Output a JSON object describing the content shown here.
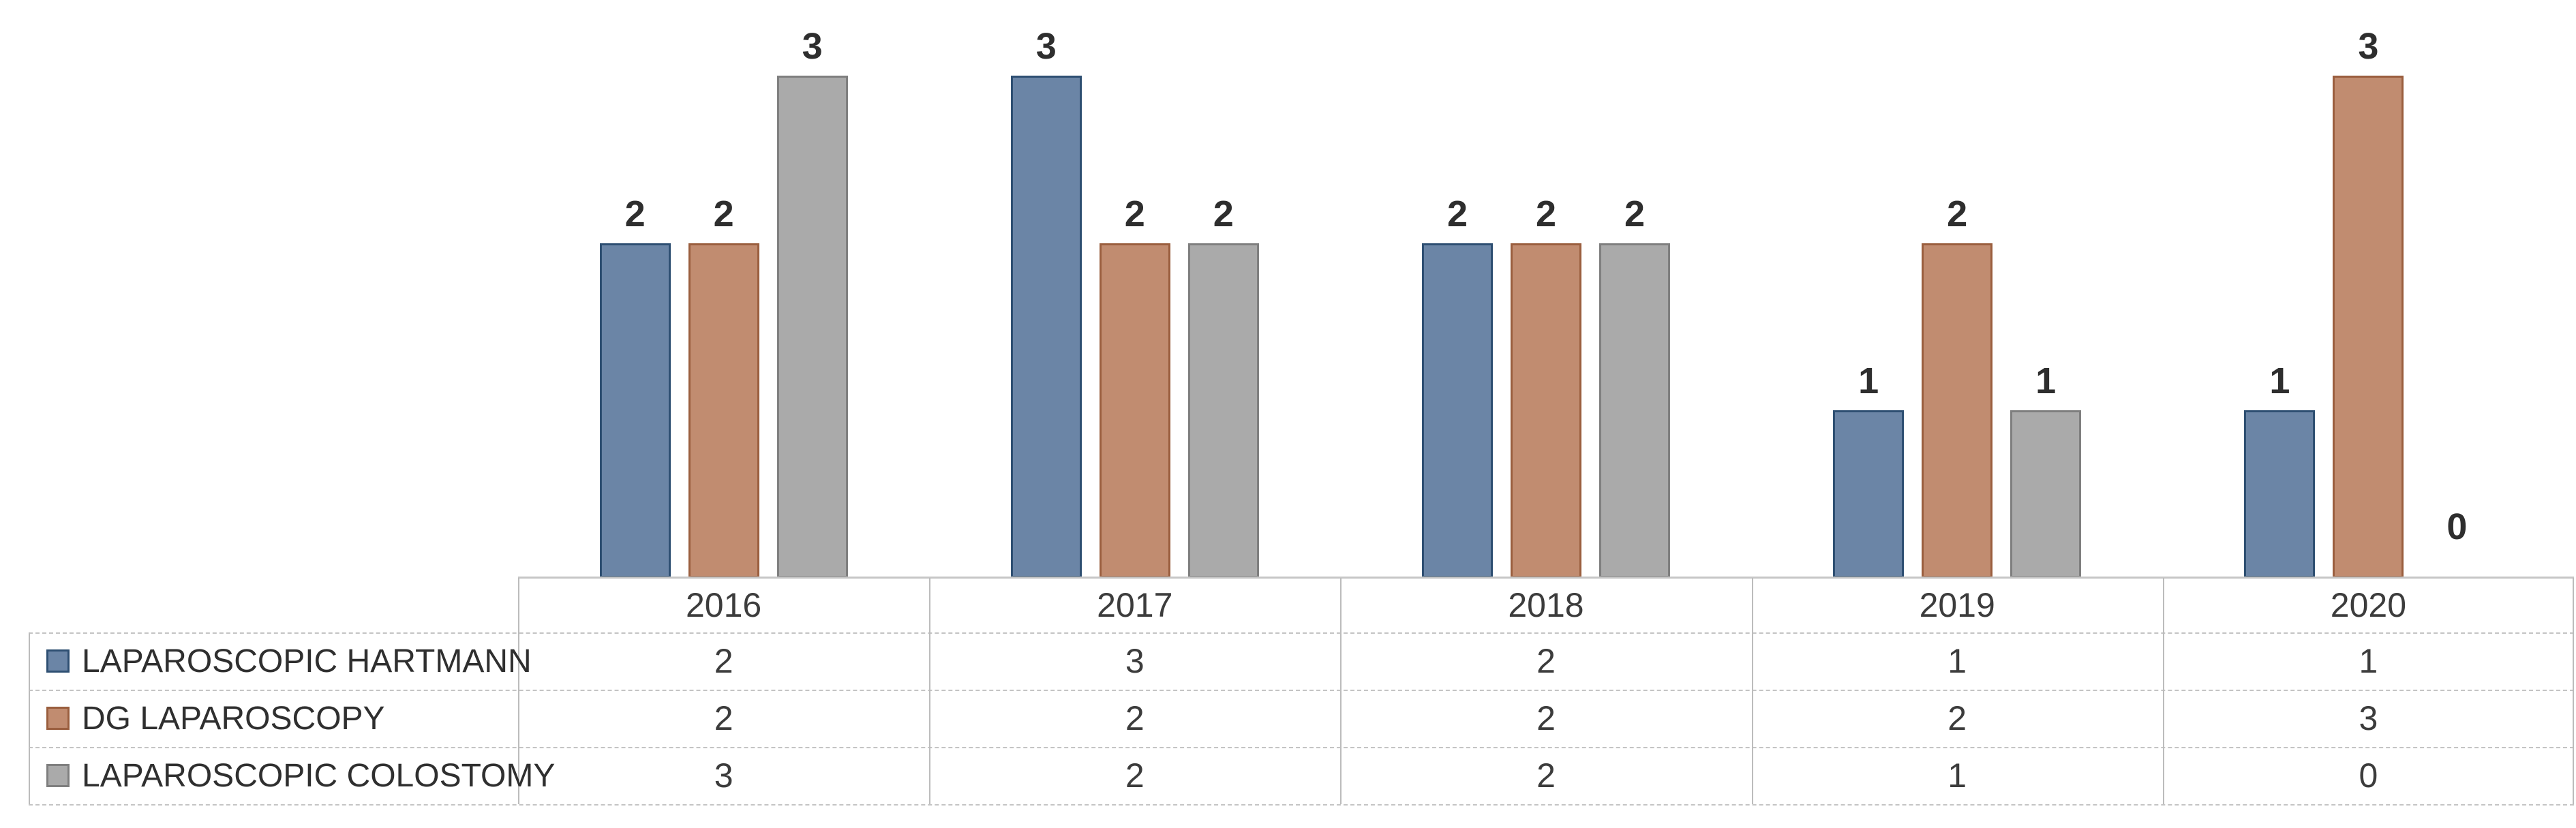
{
  "chart_data": {
    "type": "bar",
    "title": "",
    "categories": [
      "2016",
      "2017",
      "2018",
      "2019",
      "2020"
    ],
    "series": [
      {
        "name": "LAPAROSCOPIC HARTMANN",
        "values": [
          2,
          3,
          2,
          1,
          1
        ],
        "fill": "#6b85a6",
        "border": "#2e4f72"
      },
      {
        "name": "DG LAPAROSCOPY",
        "values": [
          2,
          2,
          2,
          2,
          3
        ],
        "fill": "#c18c70",
        "border": "#9a5e3e"
      },
      {
        "name": "LAPAROSCOPIC COLOSTOMY",
        "values": [
          3,
          2,
          2,
          1,
          0
        ],
        "fill": "#aaaaaa",
        "border": "#7f7f7f"
      }
    ],
    "data_labels": "outside-end",
    "data_label_values": [
      [
        "2",
        "3",
        "2",
        "1",
        "1"
      ],
      [
        "2",
        "2",
        "2",
        "2",
        "3"
      ],
      [
        "3",
        "2",
        "2",
        "1",
        "0"
      ]
    ],
    "legend_position": "data-table-left-column",
    "value_axis": {
      "min": 0,
      "max_shown_value": 3,
      "gridlines": false
    },
    "layout": "clustered-column-with-data-table"
  },
  "table": {
    "header_row": [
      "2016",
      "2017",
      "2018",
      "2019",
      "2020"
    ],
    "rows": [
      {
        "label": "LAPAROSCOPIC HARTMANN",
        "values": [
          "2",
          "3",
          "2",
          "1",
          "1"
        ]
      },
      {
        "label": "DG LAPAROSCOPY",
        "values": [
          "2",
          "2",
          "2",
          "2",
          "3"
        ]
      },
      {
        "label": "LAPAROSCOPIC COLOSTOMY",
        "values": [
          "3",
          "2",
          "2",
          "1",
          "0"
        ]
      }
    ]
  },
  "colors": {
    "series1_fill": "#6b85a6",
    "series1_border": "#2e4f72",
    "series2_fill": "#c18c70",
    "series2_border": "#9a5e3e",
    "series3_fill": "#aaaaaa",
    "series3_border": "#7f7f7f",
    "table_line": "#c4c4c4",
    "text": "#3c3c3c"
  }
}
